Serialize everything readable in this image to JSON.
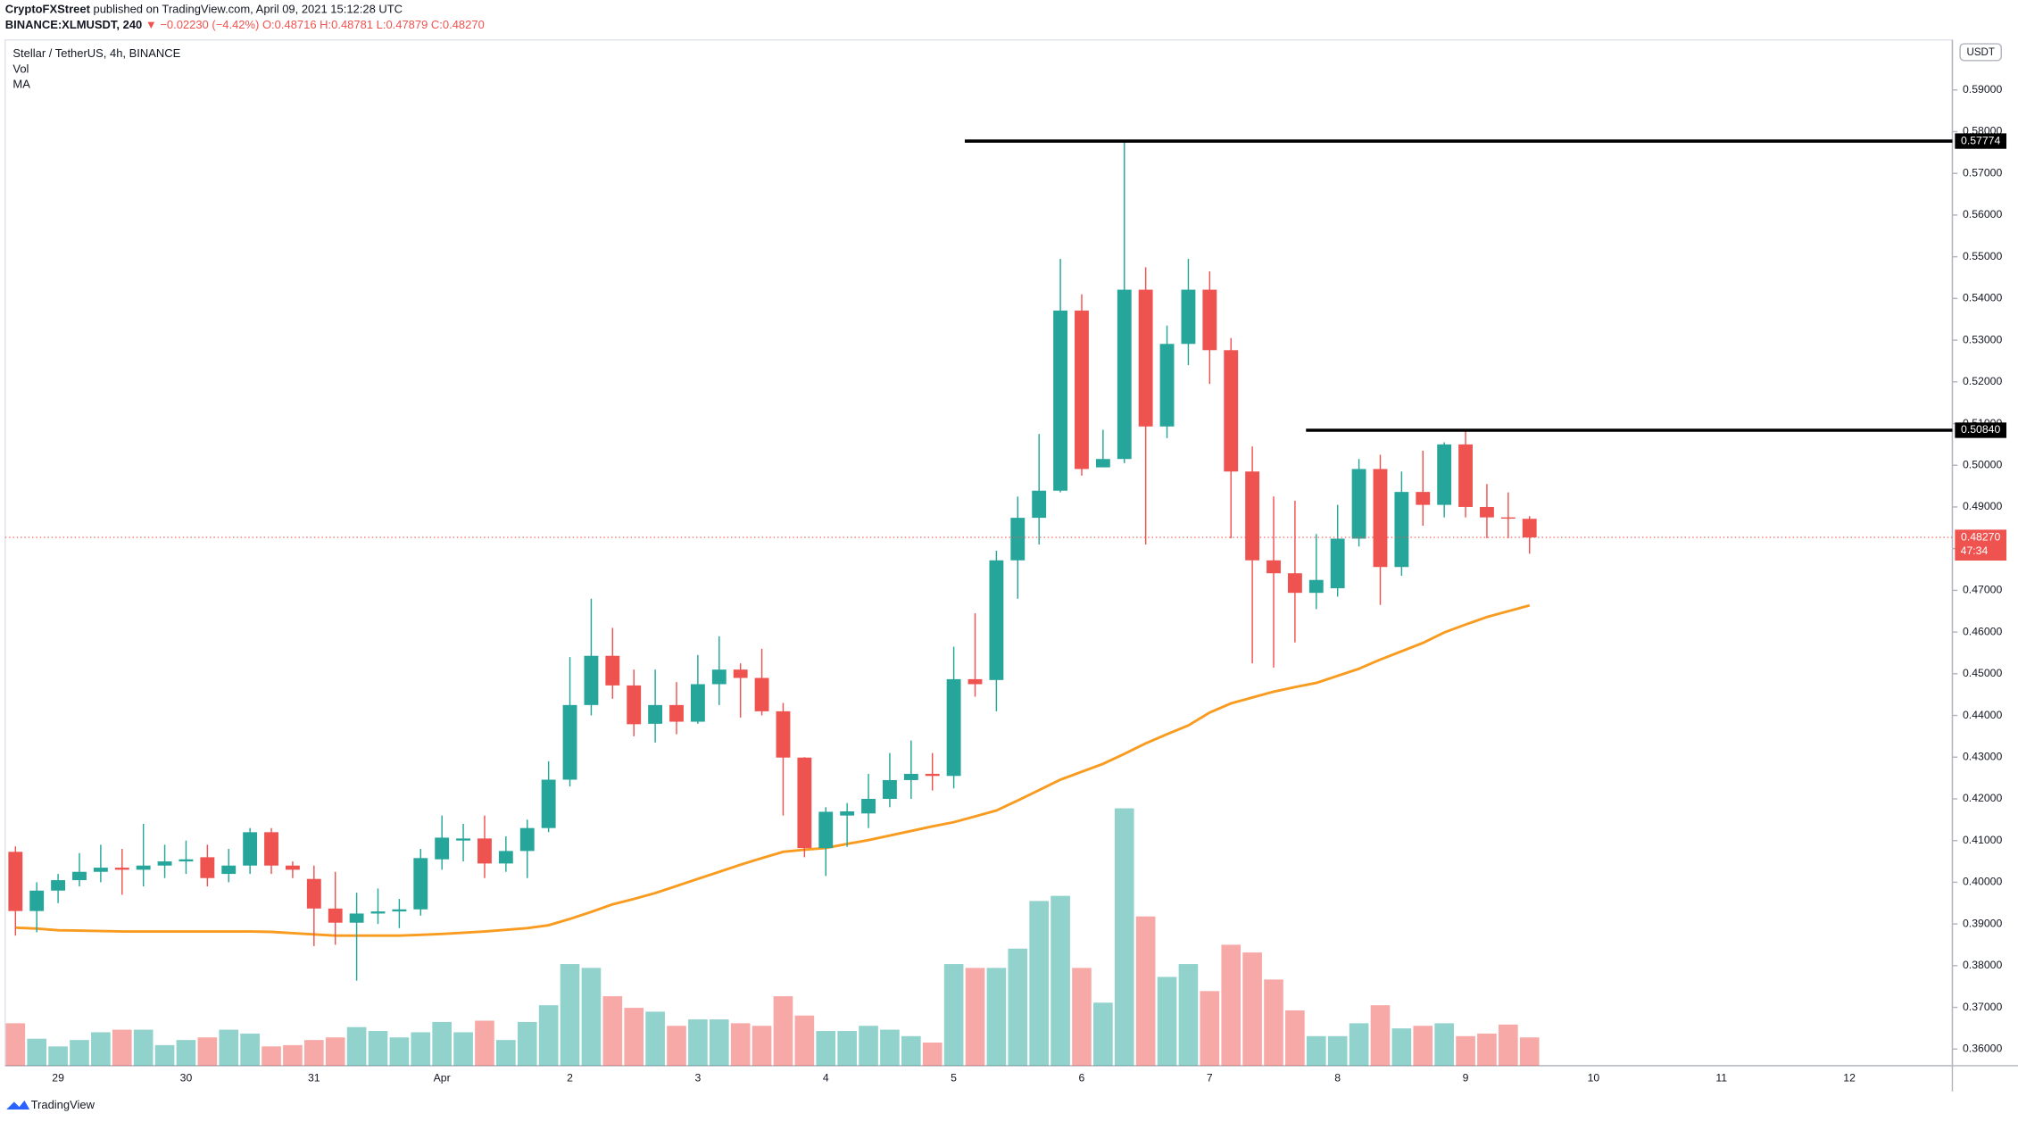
{
  "header": {
    "author": "CryptoFXStreet",
    "published": "published on TradingView.com, April 09, 2021 15:12:28 UTC",
    "symbol": "BINANCE:XLMUSDT, 240",
    "change": "▼ −0.02230 (−4.42%)",
    "ohlc": [
      "O:0.48716",
      "H:0.48781",
      "L:0.47879",
      "C:0.48270"
    ]
  },
  "legend": [
    "Vol",
    "MA"
  ],
  "currency": "USDT",
  "footer": "TradingView",
  "chart_data": {
    "type": "candlestick",
    "title": "Stellar / TetherUS, 4h, BINANCE",
    "categories": [
      null,
      null,
      "29",
      null,
      null,
      null,
      null,
      null,
      "30",
      null,
      null,
      null,
      null,
      null,
      "31",
      null,
      null,
      null,
      null,
      null,
      "Apr",
      null,
      null,
      null,
      null,
      null,
      "2",
      null,
      null,
      null,
      null,
      null,
      "3",
      null,
      null,
      null,
      null,
      null,
      "4",
      null,
      null,
      null,
      null,
      null,
      "5",
      null,
      null,
      null,
      null,
      null,
      "6",
      null,
      null,
      null,
      null,
      null,
      "7",
      null,
      null,
      null,
      null,
      null,
      "8",
      null,
      null,
      null,
      null,
      null,
      "9",
      null,
      null,
      null,
      null,
      null,
      "10",
      null,
      null,
      null,
      null,
      null,
      "11",
      null,
      null,
      null,
      null,
      null,
      "12",
      null,
      null,
      null,
      null
    ],
    "open": [
      0.4073,
      0.3931,
      0.398,
      0.4005,
      0.4025,
      0.4035,
      0.403,
      0.404,
      0.405,
      0.406,
      0.402,
      0.404,
      0.412,
      0.404,
      0.4008,
      0.3937,
      0.3903,
      0.3925,
      0.393,
      0.3935,
      0.4055,
      0.41,
      0.4105,
      0.4045,
      0.4075,
      0.413,
      0.4246,
      0.4425,
      0.4543,
      0.4472,
      0.438,
      0.4425,
      0.4385,
      0.4475,
      0.451,
      0.449,
      0.441,
      0.4299,
      0.4082,
      0.416,
      0.4165,
      0.42,
      0.4245,
      0.426,
      0.4255,
      0.4487,
      0.4485,
      0.4772,
      0.4874,
      0.4939,
      0.5371,
      0.4995,
      0.5015,
      0.5421,
      0.5093,
      0.5291,
      0.5421,
      0.5276,
      0.4985,
      0.4772,
      0.4741,
      0.4694,
      0.4705,
      0.4824,
      0.4991,
      0.4756,
      0.4936,
      0.4905,
      0.505,
      0.49,
      0.4875,
      0.48716,
      null,
      null,
      null,
      null,
      null,
      null,
      null,
      null,
      null,
      null,
      null,
      null,
      null,
      null,
      null,
      null,
      null,
      null,
      null
    ],
    "high": [
      0.4086,
      0.4,
      0.402,
      0.407,
      0.409,
      0.408,
      0.414,
      0.409,
      0.41,
      0.409,
      0.408,
      0.413,
      0.413,
      0.405,
      0.404,
      0.4025,
      0.3975,
      0.3985,
      0.396,
      0.408,
      0.416,
      0.414,
      0.416,
      0.411,
      0.415,
      0.429,
      0.454,
      0.468,
      0.461,
      0.451,
      0.451,
      0.448,
      0.4545,
      0.459,
      0.4525,
      0.456,
      0.443,
      0.43,
      0.418,
      0.419,
      0.426,
      0.431,
      0.434,
      0.431,
      0.4565,
      0.4645,
      0.4795,
      0.4925,
      0.5075,
      0.5495,
      0.541,
      0.5085,
      0.5775,
      0.5475,
      0.5335,
      0.5495,
      0.5465,
      0.5305,
      0.5045,
      0.4925,
      0.4915,
      0.4835,
      0.4905,
      0.5015,
      0.5025,
      0.4985,
      0.5035,
      0.5055,
      0.5085,
      0.4955,
      0.4935,
      0.48781,
      null,
      null,
      null,
      null,
      null,
      null,
      null,
      null,
      null,
      null,
      null,
      null,
      null,
      null,
      null,
      null,
      null,
      null,
      null
    ],
    "low": [
      0.3872,
      0.388,
      0.395,
      0.399,
      0.4,
      0.397,
      0.399,
      0.401,
      0.402,
      0.399,
      0.4,
      0.402,
      0.402,
      0.401,
      0.3847,
      0.385,
      0.3764,
      0.39,
      0.389,
      0.392,
      0.403,
      0.405,
      0.401,
      0.4025,
      0.401,
      0.412,
      0.423,
      0.44,
      0.444,
      0.435,
      0.4335,
      0.4355,
      0.438,
      0.4425,
      0.4395,
      0.44,
      0.416,
      0.406,
      0.4015,
      0.4085,
      0.413,
      0.418,
      0.42,
      0.422,
      0.4225,
      0.4445,
      0.441,
      0.468,
      0.481,
      0.4935,
      0.4975,
      0.4995,
      0.5005,
      0.481,
      0.5065,
      0.524,
      0.5195,
      0.4825,
      0.4525,
      0.4515,
      0.4575,
      0.4655,
      0.4685,
      0.4805,
      0.4665,
      0.4735,
      0.4855,
      0.4875,
      0.4875,
      0.4825,
      0.4825,
      0.47879,
      null,
      null,
      null,
      null,
      null,
      null,
      null,
      null,
      null,
      null,
      null,
      null,
      null,
      null,
      null,
      null,
      null,
      null,
      null
    ],
    "close": [
      0.3931,
      0.398,
      0.4005,
      0.4025,
      0.4035,
      0.403,
      0.404,
      0.405,
      0.4055,
      0.401,
      0.404,
      0.412,
      0.404,
      0.403,
      0.3937,
      0.3903,
      0.3925,
      0.393,
      0.3935,
      0.4058,
      0.4107,
      0.4105,
      0.4045,
      0.4075,
      0.413,
      0.4246,
      0.4425,
      0.4543,
      0.4472,
      0.4379,
      0.4425,
      0.4385,
      0.4475,
      0.451,
      0.449,
      0.441,
      0.4299,
      0.4082,
      0.4169,
      0.417,
      0.42,
      0.4245,
      0.426,
      0.4255,
      0.4487,
      0.4475,
      0.4772,
      0.4874,
      0.4939,
      0.5371,
      0.4991,
      0.5015,
      0.5421,
      0.5093,
      0.5291,
      0.5421,
      0.5276,
      0.4985,
      0.4772,
      0.4741,
      0.4694,
      0.4725,
      0.4824,
      0.4991,
      0.4756,
      0.4936,
      0.4905,
      0.505,
      0.49,
      0.4875,
      0.4872,
      0.4827,
      null,
      null,
      null,
      null,
      null,
      null,
      null,
      null,
      null,
      null,
      null,
      null,
      null,
      null,
      null,
      null,
      null,
      null,
      null
    ],
    "close_label": "0.48270",
    "countdown": "47:34",
    "volume": [
      33,
      21,
      15,
      20,
      26,
      28,
      28,
      16,
      20,
      22,
      28,
      25,
      15,
      16,
      20,
      22,
      30,
      27,
      22,
      26,
      34,
      26,
      35,
      20,
      34,
      47,
      79,
      76,
      54,
      45,
      42,
      31,
      36,
      36,
      33,
      31,
      54,
      39,
      27,
      27,
      31,
      28,
      23,
      18,
      79,
      76,
      76,
      91,
      128,
      132,
      76,
      49,
      200,
      116,
      69,
      79,
      58,
      94,
      88,
      67,
      43,
      23,
      23,
      33,
      47,
      29,
      31,
      33,
      23,
      25,
      32,
      22,
      null,
      null,
      null,
      null,
      null,
      null,
      null,
      null,
      null,
      null,
      null,
      null,
      null,
      null,
      null,
      null,
      null,
      null,
      null
    ],
    "ma": [
      0.3891,
      0.3889,
      0.3885,
      0.3884,
      0.3883,
      0.3882,
      0.3882,
      0.3882,
      0.3882,
      0.3882,
      0.3882,
      0.3882,
      0.3881,
      0.3878,
      0.3875,
      0.3872,
      0.3872,
      0.3872,
      0.3872,
      0.3874,
      0.3876,
      0.3879,
      0.3882,
      0.3886,
      0.389,
      0.3897,
      0.3912,
      0.3929,
      0.3947,
      0.396,
      0.3974,
      0.3991,
      0.4008,
      0.4025,
      0.4042,
      0.4058,
      0.4073,
      0.4078,
      0.4082,
      0.4092,
      0.4101,
      0.4112,
      0.4123,
      0.4134,
      0.4144,
      0.4158,
      0.4172,
      0.4196,
      0.4221,
      0.4246,
      0.4265,
      0.4284,
      0.4308,
      0.4333,
      0.4355,
      0.4376,
      0.4407,
      0.4429,
      0.4443,
      0.4457,
      0.4468,
      0.4478,
      0.4495,
      0.4512,
      0.4534,
      0.4554,
      0.4574,
      0.4599,
      0.4618,
      0.4636,
      0.465,
      0.4664,
      null,
      null,
      null,
      null,
      null,
      null,
      null,
      null,
      null,
      null,
      null,
      null,
      null,
      null,
      null,
      null,
      null,
      null,
      null
    ],
    "colors": {
      "up": "#26a69a",
      "down": "#ef5350",
      "ma": "#f89b1f",
      "level": "#000000"
    },
    "levels": [
      {
        "value": 0.57774,
        "label": "0.57774",
        "start": 45
      },
      {
        "value": 0.5084,
        "label": "0.50840",
        "start": 61
      }
    ],
    "ylim": [
      0.356,
      0.602
    ],
    "yticks": [
      {
        "value": 0.36,
        "label": "0.36000"
      },
      {
        "value": 0.37,
        "label": "0.37000"
      },
      {
        "value": 0.38,
        "label": "0.38000"
      },
      {
        "value": 0.39,
        "label": "0.39000"
      },
      {
        "value": 0.4,
        "label": "0.40000"
      },
      {
        "value": 0.41,
        "label": "0.41000"
      },
      {
        "value": 0.42,
        "label": "0.42000"
      },
      {
        "value": 0.43,
        "label": "0.43000"
      },
      {
        "value": 0.44,
        "label": "0.44000"
      },
      {
        "value": 0.45,
        "label": "0.45000"
      },
      {
        "value": 0.46,
        "label": "0.46000"
      },
      {
        "value": 0.47,
        "label": "0.47000"
      },
      {
        "value": 0.48,
        "label": "0.48000"
      },
      {
        "value": 0.49,
        "label": "0.49000"
      },
      {
        "value": 0.5,
        "label": "0.50000"
      },
      {
        "value": 0.51,
        "label": "0.51000"
      },
      {
        "value": 0.52,
        "label": "0.52000"
      },
      {
        "value": 0.53,
        "label": "0.53000"
      },
      {
        "value": 0.54,
        "label": "0.54000"
      },
      {
        "value": 0.55,
        "label": "0.55000"
      },
      {
        "value": 0.56,
        "label": "0.56000"
      },
      {
        "value": 0.57,
        "label": "0.57000"
      },
      {
        "value": 0.58,
        "label": "0.58000"
      },
      {
        "value": 0.59,
        "label": "0.59000"
      }
    ]
  }
}
